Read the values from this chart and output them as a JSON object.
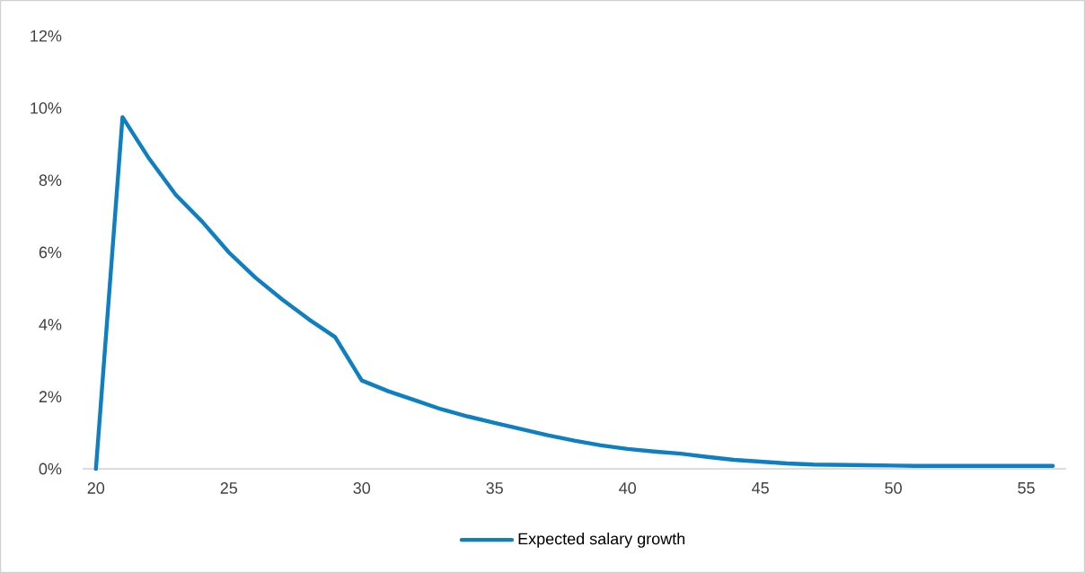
{
  "chart_data": {
    "type": "line",
    "legend": "bottom",
    "grid": false,
    "x": [
      20,
      21,
      22,
      23,
      24,
      25,
      26,
      27,
      28,
      29,
      30,
      31,
      32,
      33,
      34,
      35,
      36,
      37,
      38,
      39,
      40,
      41,
      42,
      43,
      44,
      45,
      46,
      47,
      48,
      49,
      50,
      51,
      52,
      53,
      54,
      55,
      56
    ],
    "series": [
      {
        "name": "Expected salary growth",
        "color": "#0e7fc0",
        "values": [
          0,
          9.75,
          8.6,
          7.6,
          6.85,
          6.0,
          5.3,
          4.7,
          4.15,
          3.65,
          2.45,
          2.15,
          1.9,
          1.65,
          1.45,
          1.27,
          1.1,
          0.93,
          0.78,
          0.65,
          0.55,
          0.48,
          0.42,
          0.33,
          0.25,
          0.2,
          0.15,
          0.12,
          0.11,
          0.1,
          0.09,
          0.08,
          0.08,
          0.08,
          0.08,
          0.08,
          0.08
        ]
      }
    ],
    "xlim": [
      19.5,
      56.5
    ],
    "xticks": [
      20,
      25,
      30,
      35,
      40,
      45,
      50,
      55
    ],
    "ylim": [
      0,
      12
    ],
    "yticks": [
      {
        "value": 0,
        "label": "0%"
      },
      {
        "value": 2,
        "label": "2%"
      },
      {
        "value": 4,
        "label": "4%"
      },
      {
        "value": 6,
        "label": "6%"
      },
      {
        "value": 8,
        "label": "8%"
      },
      {
        "value": 10,
        "label": "10%"
      },
      {
        "value": 12,
        "label": "12%"
      }
    ]
  }
}
